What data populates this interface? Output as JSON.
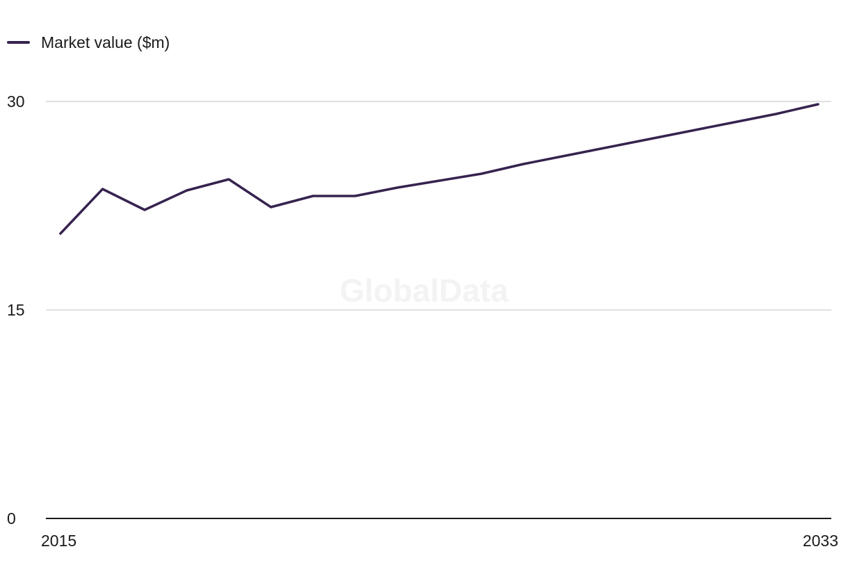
{
  "chart_data": {
    "type": "line",
    "title": "",
    "xlabel": "",
    "ylabel": "",
    "x": [
      2015,
      2016,
      2017,
      2018,
      2019,
      2020,
      2021,
      2022,
      2023,
      2024,
      2025,
      2026,
      2027,
      2028,
      2029,
      2030,
      2031,
      2032,
      2033
    ],
    "x_tick_labels": [
      "2015",
      "2033"
    ],
    "y_tick_labels": [
      "0",
      "15",
      "30"
    ],
    "y_ticks": [
      0,
      15,
      30
    ],
    "ylim": [
      0,
      30
    ],
    "series": [
      {
        "name": "Market value ($m)",
        "color": "#36234f",
        "values": [
          20.5,
          23.7,
          22.2,
          23.6,
          24.4,
          22.4,
          23.2,
          23.2,
          23.8,
          24.3,
          24.8,
          25.5,
          26.1,
          26.7,
          27.3,
          27.9,
          28.5,
          29.1,
          29.8
        ]
      }
    ],
    "legend_position": "top-left",
    "grid": true,
    "grid_color": "#d6d6d6",
    "axis_color": "#1a1a1a"
  },
  "watermark": "GlobalData"
}
